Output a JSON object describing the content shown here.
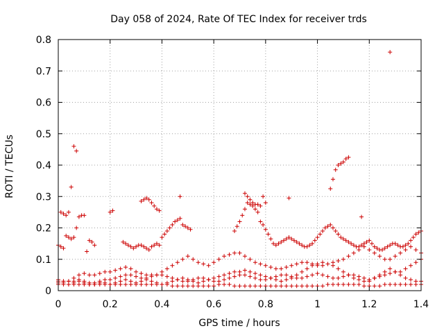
{
  "chart_data": {
    "type": "scatter",
    "title": "Day 058 of 2024, Rate Of TEC Index for receiver trds",
    "xlabel": "GPS time / hours",
    "ylabel": "ROTI / TECUs",
    "xlim": [
      0,
      1.4
    ],
    "ylim": [
      0,
      0.8
    ],
    "xticks": [
      "0",
      "0.2",
      "0.4",
      "0.6",
      "0.8",
      "1",
      "1.2",
      "1.4"
    ],
    "yticks": [
      "0",
      "0.1",
      "0.2",
      "0.3",
      "0.4",
      "0.5",
      "0.6",
      "0.7",
      "0.8"
    ],
    "grid": true,
    "marker": "+",
    "color": "#cc0000",
    "series": [
      {
        "x": [
          0.0,
          0.02,
          0.04,
          0.06,
          0.08,
          0.1,
          0.12,
          0.14,
          0.16,
          0.18,
          0.2,
          0.22,
          0.24,
          0.26,
          0.28,
          0.3,
          0.32,
          0.34,
          0.36,
          0.38,
          0.4,
          0.42,
          0.44,
          0.46,
          0.48,
          0.5,
          0.52,
          0.54,
          0.56,
          0.58,
          0.6,
          0.62,
          0.64,
          0.66,
          0.68,
          0.7,
          0.72,
          0.74,
          0.76,
          0.78,
          0.8,
          0.82,
          0.84,
          0.86,
          0.88,
          0.9,
          0.92,
          0.94,
          0.96,
          0.98,
          1.0,
          1.02,
          1.04,
          1.06,
          1.08,
          1.1,
          1.12,
          1.14,
          1.16,
          1.18,
          1.2,
          1.22,
          1.24,
          1.26,
          1.28,
          1.3,
          1.32,
          1.34,
          1.36,
          1.38,
          1.4
        ],
        "y": [
          0.02,
          0.02,
          0.02,
          0.02,
          0.02,
          0.02,
          0.02,
          0.02,
          0.02,
          0.02,
          0.02,
          0.02,
          0.02,
          0.02,
          0.02,
          0.02,
          0.02,
          0.02,
          0.02,
          0.02,
          0.02,
          0.02,
          0.015,
          0.015,
          0.015,
          0.015,
          0.015,
          0.015,
          0.015,
          0.015,
          0.015,
          0.02,
          0.02,
          0.02,
          0.015,
          0.015,
          0.015,
          0.015,
          0.015,
          0.015,
          0.015,
          0.015,
          0.015,
          0.015,
          0.015,
          0.015,
          0.015,
          0.015,
          0.015,
          0.015,
          0.015,
          0.015,
          0.02,
          0.02,
          0.02,
          0.02,
          0.02,
          0.02,
          0.02,
          0.015,
          0.015,
          0.015,
          0.015,
          0.02,
          0.02,
          0.02,
          0.02,
          0.02,
          0.02,
          0.02,
          0.02
        ]
      },
      {
        "x": [
          0.0,
          0.02,
          0.04,
          0.06,
          0.08,
          0.1,
          0.12,
          0.14,
          0.16,
          0.18,
          0.2,
          0.22,
          0.24,
          0.26,
          0.28,
          0.3,
          0.32,
          0.34,
          0.36,
          0.38,
          0.4,
          0.42,
          0.44,
          0.46,
          0.48,
          0.5,
          0.52,
          0.54,
          0.56,
          0.58,
          0.6,
          0.62,
          0.64,
          0.66,
          0.68,
          0.7,
          0.72,
          0.74,
          0.76,
          0.78,
          0.8,
          0.82,
          0.84,
          0.86,
          0.88,
          0.9,
          0.92,
          0.94,
          0.96,
          0.98,
          1.0,
          1.02,
          1.04,
          1.06,
          1.08,
          1.1,
          1.12,
          1.14,
          1.16,
          1.18,
          1.2,
          1.22,
          1.24,
          1.26,
          1.28,
          1.3,
          1.32,
          1.34,
          1.36,
          1.38,
          1.4
        ],
        "y": [
          0.03,
          0.03,
          0.03,
          0.04,
          0.05,
          0.055,
          0.05,
          0.05,
          0.055,
          0.06,
          0.06,
          0.065,
          0.07,
          0.075,
          0.07,
          0.06,
          0.055,
          0.05,
          0.05,
          0.05,
          0.06,
          0.07,
          0.08,
          0.09,
          0.1,
          0.11,
          0.1,
          0.09,
          0.085,
          0.08,
          0.09,
          0.1,
          0.11,
          0.115,
          0.12,
          0.12,
          0.11,
          0.1,
          0.09,
          0.085,
          0.08,
          0.075,
          0.07,
          0.07,
          0.075,
          0.08,
          0.085,
          0.09,
          0.09,
          0.085,
          0.08,
          0.08,
          0.085,
          0.09,
          0.095,
          0.1,
          0.11,
          0.12,
          0.13,
          0.14,
          0.13,
          0.12,
          0.11,
          0.1,
          0.1,
          0.11,
          0.12,
          0.13,
          0.14,
          0.13,
          0.12
        ]
      },
      {
        "x": [
          0.0,
          0.02,
          0.04,
          0.06,
          0.08,
          0.1,
          0.12,
          0.14,
          0.16,
          0.18,
          0.2,
          0.22,
          0.24,
          0.26,
          0.28,
          0.3,
          0.32,
          0.34,
          0.36,
          0.38,
          0.4,
          0.42,
          0.44,
          0.46,
          0.48,
          0.5,
          0.52,
          0.54,
          0.56,
          0.58,
          0.6,
          0.62,
          0.64,
          0.66,
          0.68,
          0.7,
          0.72,
          0.74,
          0.76,
          0.78,
          0.8,
          0.82,
          0.84,
          0.86,
          0.88,
          0.9,
          0.92,
          0.94,
          0.96,
          0.98,
          1.0,
          1.02,
          1.04,
          1.06,
          1.08,
          1.1,
          1.12,
          1.14,
          1.16,
          1.18,
          1.2,
          1.22,
          1.24,
          1.26,
          1.28,
          1.3,
          1.32,
          1.34,
          1.36,
          1.38,
          1.4
        ],
        "y": [
          0.035,
          0.03,
          0.03,
          0.03,
          0.035,
          0.03,
          0.025,
          0.025,
          0.03,
          0.035,
          0.035,
          0.04,
          0.045,
          0.05,
          0.05,
          0.045,
          0.04,
          0.04,
          0.045,
          0.05,
          0.05,
          0.045,
          0.04,
          0.035,
          0.03,
          0.03,
          0.035,
          0.04,
          0.04,
          0.035,
          0.03,
          0.03,
          0.035,
          0.04,
          0.045,
          0.05,
          0.05,
          0.045,
          0.04,
          0.035,
          0.035,
          0.04,
          0.045,
          0.05,
          0.05,
          0.045,
          0.04,
          0.04,
          0.045,
          0.05,
          0.055,
          0.05,
          0.045,
          0.04,
          0.04,
          0.045,
          0.05,
          0.05,
          0.045,
          0.04,
          0.035,
          0.04,
          0.045,
          0.05,
          0.055,
          0.06,
          0.06,
          0.07,
          0.08,
          0.09,
          0.1
        ]
      },
      {
        "x": [
          0.0,
          0.02,
          0.04,
          0.06,
          0.08,
          0.1,
          0.12,
          0.14,
          0.16,
          0.18,
          0.2,
          0.22,
          0.24,
          0.26,
          0.28,
          0.3,
          0.32,
          0.34,
          0.36,
          0.38,
          0.4,
          0.42,
          0.44,
          0.46,
          0.48,
          0.5,
          0.52,
          0.54,
          0.56,
          0.58,
          0.6,
          0.62,
          0.64,
          0.66,
          0.68,
          0.7,
          0.72,
          0.74,
          0.76,
          0.78,
          0.8,
          0.82,
          0.84,
          0.86,
          0.88,
          0.9,
          0.92,
          0.94,
          0.96,
          0.98,
          1.0,
          1.02,
          1.04,
          1.06,
          1.08,
          1.1,
          1.12,
          1.14,
          1.16,
          1.18,
          1.2,
          1.22,
          1.24,
          1.26,
          1.28,
          1.3,
          1.32,
          1.34,
          1.36,
          1.38,
          1.4
        ],
        "y": [
          0.025,
          0.025,
          0.02,
          0.025,
          0.03,
          0.025,
          0.02,
          0.02,
          0.025,
          0.025,
          0.02,
          0.025,
          0.03,
          0.035,
          0.03,
          0.025,
          0.03,
          0.035,
          0.03,
          0.025,
          0.02,
          0.025,
          0.03,
          0.035,
          0.04,
          0.035,
          0.03,
          0.025,
          0.03,
          0.035,
          0.04,
          0.045,
          0.05,
          0.055,
          0.06,
          0.06,
          0.065,
          0.06,
          0.055,
          0.05,
          0.045,
          0.04,
          0.035,
          0.03,
          0.035,
          0.04,
          0.05,
          0.06,
          0.07,
          0.08,
          0.085,
          0.09,
          0.085,
          0.08,
          0.07,
          0.06,
          0.05,
          0.04,
          0.035,
          0.03,
          0.03,
          0.04,
          0.05,
          0.06,
          0.07,
          0.06,
          0.05,
          0.04,
          0.035,
          0.03,
          0.03
        ]
      },
      {
        "x": [
          0.0,
          0.01,
          0.02,
          0.03,
          0.04,
          0.05,
          0.06,
          0.07,
          0.08,
          0.09,
          0.1,
          0.11,
          0.12,
          0.13,
          0.14,
          0.2,
          0.21,
          0.25,
          0.26,
          0.27,
          0.28,
          0.29,
          0.3,
          0.31,
          0.32,
          0.33,
          0.34,
          0.35,
          0.36,
          0.37,
          0.38,
          0.39,
          0.4,
          0.41,
          0.42,
          0.43,
          0.44,
          0.45,
          0.46,
          0.47,
          0.48,
          0.49,
          0.5,
          0.51,
          0.68,
          0.69,
          0.7,
          0.71,
          0.72,
          0.73,
          0.74,
          0.75,
          0.76,
          0.77,
          0.78,
          0.79,
          0.8,
          0.81,
          0.82,
          0.83,
          0.84,
          0.85,
          0.86,
          0.87,
          0.88,
          0.89,
          0.9,
          0.91,
          0.92,
          0.93,
          0.94,
          0.95,
          0.96,
          0.97,
          0.98,
          0.99,
          1.0,
          1.01,
          1.02,
          1.03,
          1.04,
          1.05,
          1.06,
          1.07,
          1.08,
          1.09,
          1.1,
          1.11,
          1.12,
          1.13,
          1.14,
          1.15,
          1.16,
          1.17,
          1.18,
          1.19,
          1.2,
          1.21,
          1.22,
          1.23,
          1.24,
          1.25,
          1.26,
          1.27,
          1.28,
          1.29,
          1.3,
          1.31,
          1.32,
          1.33,
          1.34,
          1.35,
          1.36,
          1.37,
          1.38,
          1.39,
          1.4
        ],
        "y": [
          0.145,
          0.14,
          0.135,
          0.175,
          0.17,
          0.165,
          0.17,
          0.2,
          0.235,
          0.24,
          0.24,
          0.125,
          0.16,
          0.155,
          0.145,
          0.25,
          0.255,
          0.155,
          0.15,
          0.145,
          0.14,
          0.135,
          0.14,
          0.145,
          0.145,
          0.14,
          0.135,
          0.13,
          0.14,
          0.145,
          0.15,
          0.145,
          0.17,
          0.18,
          0.19,
          0.2,
          0.21,
          0.22,
          0.225,
          0.23,
          0.21,
          0.205,
          0.2,
          0.195,
          0.19,
          0.205,
          0.22,
          0.24,
          0.26,
          0.28,
          0.275,
          0.27,
          0.26,
          0.25,
          0.22,
          0.21,
          0.195,
          0.18,
          0.165,
          0.15,
          0.145,
          0.15,
          0.155,
          0.16,
          0.165,
          0.17,
          0.165,
          0.16,
          0.155,
          0.15,
          0.145,
          0.14,
          0.14,
          0.145,
          0.15,
          0.16,
          0.17,
          0.18,
          0.19,
          0.2,
          0.205,
          0.21,
          0.2,
          0.19,
          0.18,
          0.17,
          0.165,
          0.16,
          0.155,
          0.15,
          0.145,
          0.14,
          0.14,
          0.145,
          0.15,
          0.155,
          0.16,
          0.15,
          0.14,
          0.135,
          0.13,
          0.13,
          0.135,
          0.14,
          0.145,
          0.15,
          0.15,
          0.145,
          0.14,
          0.14,
          0.145,
          0.15,
          0.16,
          0.17,
          0.18,
          0.185,
          0.19
        ]
      },
      {
        "x": [
          0.01,
          0.02,
          0.03,
          0.04,
          0.05,
          0.06,
          0.07,
          0.32,
          0.33,
          0.34,
          0.35,
          0.36,
          0.37,
          0.38,
          0.39,
          0.47,
          0.72,
          0.73,
          0.74,
          0.75,
          0.76,
          0.77,
          0.78,
          0.79,
          0.8,
          0.89,
          1.05,
          1.06,
          1.07,
          1.08,
          1.09,
          1.1,
          1.11,
          1.12,
          1.17,
          1.28
        ],
        "y": [
          0.25,
          0.245,
          0.24,
          0.25,
          0.33,
          0.46,
          0.445,
          0.285,
          0.29,
          0.295,
          0.29,
          0.28,
          0.27,
          0.26,
          0.255,
          0.3,
          0.31,
          0.3,
          0.29,
          0.28,
          0.275,
          0.275,
          0.27,
          0.3,
          0.28,
          0.295,
          0.325,
          0.355,
          0.385,
          0.4,
          0.405,
          0.41,
          0.42,
          0.425,
          0.235,
          0.76
        ]
      }
    ]
  }
}
